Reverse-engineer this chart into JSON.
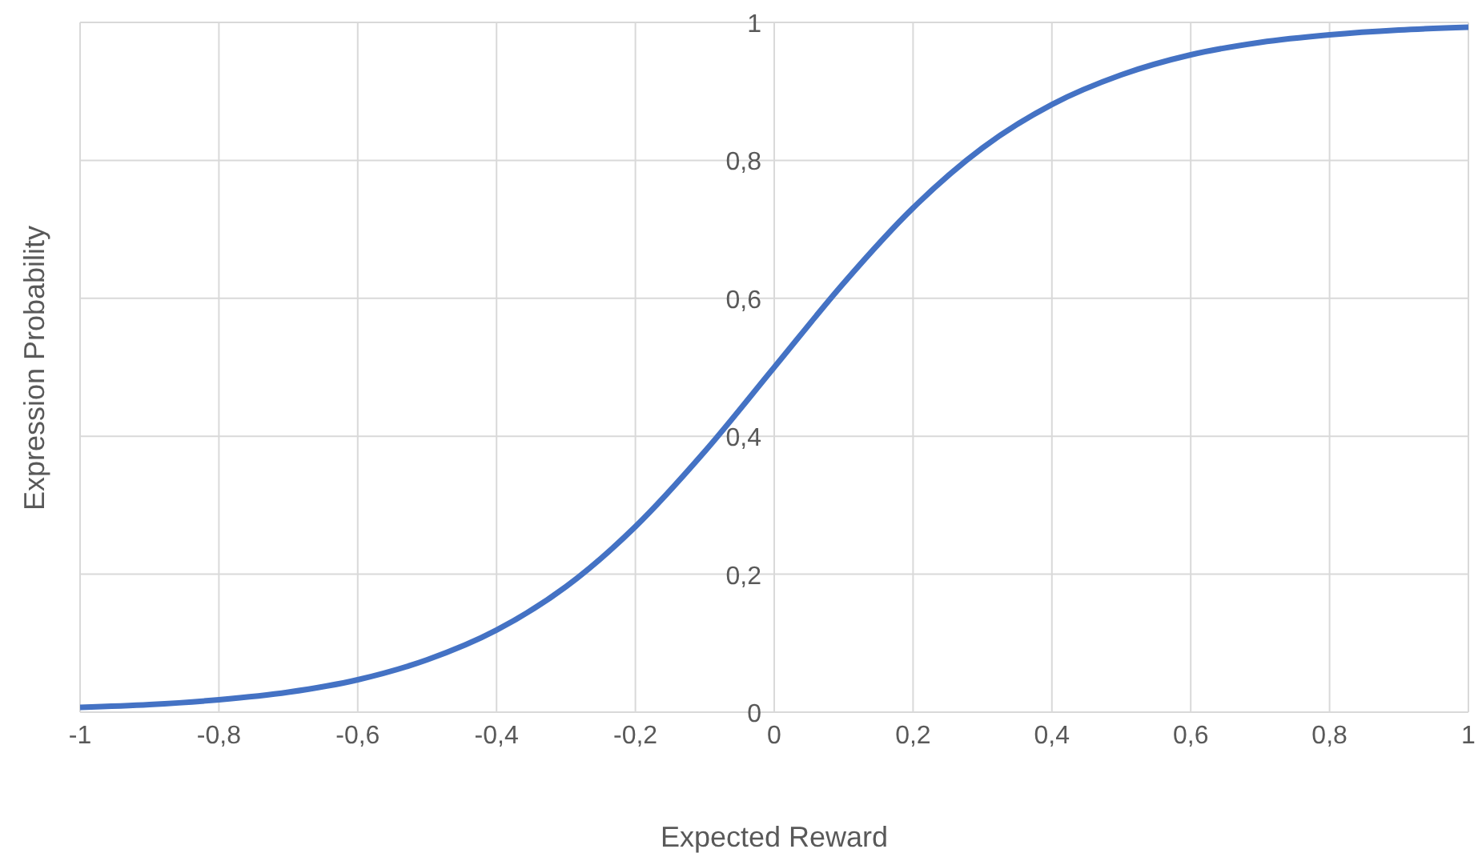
{
  "chart_data": {
    "type": "line",
    "xlabel": "Expected Reward",
    "ylabel": "Expression Probability",
    "x": [
      -1,
      -0.9,
      -0.8,
      -0.7,
      -0.6,
      -0.5,
      -0.4,
      -0.3,
      -0.2,
      -0.1,
      0,
      0.1,
      0.2,
      0.3,
      0.4,
      0.5,
      0.6,
      0.7,
      0.8,
      0.9,
      1
    ],
    "series": [
      {
        "color": "#4472c4",
        "values": [
          0.007,
          0.011,
          0.018,
          0.029,
          0.047,
          0.076,
          0.119,
          0.182,
          0.269,
          0.378,
          0.5,
          0.622,
          0.731,
          0.818,
          0.881,
          0.924,
          0.953,
          0.971,
          0.982,
          0.989,
          0.993
        ]
      }
    ],
    "xlim": [
      -1,
      1
    ],
    "xticks": [
      {
        "value": -1,
        "label": "-1"
      },
      {
        "value": -0.8,
        "label": "-0,8"
      },
      {
        "value": -0.6,
        "label": "-0,6"
      },
      {
        "value": -0.4,
        "label": "-0,4"
      },
      {
        "value": -0.2,
        "label": "-0,2"
      },
      {
        "value": 0,
        "label": "0"
      },
      {
        "value": 0.2,
        "label": "0,2"
      },
      {
        "value": 0.4,
        "label": "0,4"
      },
      {
        "value": 0.6,
        "label": "0,6"
      },
      {
        "value": 0.8,
        "label": "0,8"
      },
      {
        "value": 1,
        "label": "1"
      }
    ],
    "ylim": [
      0,
      1
    ],
    "yticks": [
      {
        "value": 0,
        "label": "0"
      },
      {
        "value": 0.2,
        "label": "0,2"
      },
      {
        "value": 0.4,
        "label": "0,4"
      },
      {
        "value": 0.6,
        "label": "0,6"
      },
      {
        "value": 0.8,
        "label": "0,8"
      },
      {
        "value": 1,
        "label": "1"
      }
    ],
    "grid": true,
    "marker": "none",
    "line_style": "solid",
    "legend": false
  }
}
